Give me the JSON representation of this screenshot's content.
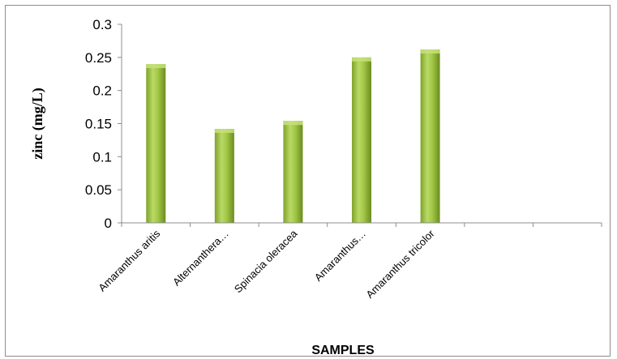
{
  "chart_data": {
    "type": "bar",
    "categories": [
      "Amaranthus aritis",
      "Alternanthera…",
      "Spinacia oleracea",
      "Amaranthus…",
      "Amaranthus tricolor"
    ],
    "values": [
      0.24,
      0.142,
      0.154,
      0.25,
      0.262
    ],
    "xlabel": "SAMPLES",
    "ylabel": "zinc (mg/L)",
    "ylim": [
      0,
      0.3
    ],
    "yticks": [
      "0",
      "0.05",
      "0.1",
      "0.15",
      "0.2",
      "0.25",
      "0.3"
    ],
    "grid": false,
    "legend": "none",
    "colors": {
      "bar_light": "#c6e07a",
      "bar_mid": "#9bc23c",
      "bar_dark": "#6e8f22",
      "axis": "#8c8c8c"
    }
  }
}
